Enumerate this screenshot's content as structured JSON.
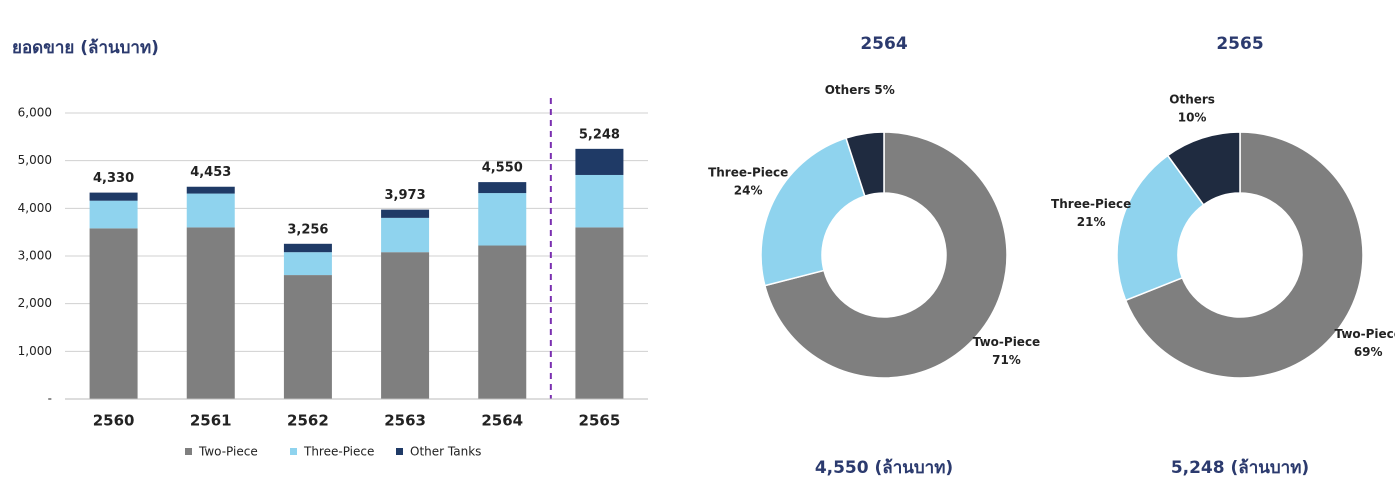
{
  "chart_data": [
    {
      "type": "stacked_bar",
      "title": "ยอดขาย (ล้านบาท)",
      "categories": [
        "2560",
        "2561",
        "2562",
        "2563",
        "2564",
        "2565"
      ],
      "series": [
        {
          "name": "Two-Piece",
          "color": "#7f7f7f",
          "values": [
            3580,
            3600,
            2600,
            3080,
            3220,
            3600
          ]
        },
        {
          "name": "Three-Piece",
          "color": "#8fd3ee",
          "values": [
            580,
            710,
            480,
            720,
            1100,
            1100
          ]
        },
        {
          "name": "Other Tanks",
          "color": "#1f3a66",
          "values": [
            170,
            143,
            176,
            173,
            230,
            548
          ]
        }
      ],
      "totals": [
        4330,
        4453,
        3256,
        3973,
        4550,
        5248
      ],
      "total_labels": [
        "4,330",
        "4,453",
        "3,256",
        "3,973",
        "4,550",
        "5,248"
      ],
      "ylim": [
        0,
        6000
      ],
      "yticks": [
        {
          "value": 0,
          "label": "-"
        },
        {
          "value": 1000,
          "label": "1,000"
        },
        {
          "value": 2000,
          "label": "2,000"
        },
        {
          "value": 3000,
          "label": "3,000"
        },
        {
          "value": 4000,
          "label": "4,000"
        },
        {
          "value": 5000,
          "label": "5,000"
        },
        {
          "value": 6000,
          "label": "6,000"
        }
      ],
      "grid": true,
      "legend": "bottom"
    },
    {
      "type": "donut",
      "title": "2564",
      "caption": "4,550 (ล้านบาท)",
      "categories": [
        "Two-Piece",
        "Three-Piece",
        "Others"
      ],
      "values": [
        71,
        24,
        5
      ],
      "value_labels": [
        "71%",
        "24%",
        "5%"
      ],
      "colors": [
        "#7f7f7f",
        "#8fd3ee",
        "#1f2b40"
      ]
    },
    {
      "type": "donut",
      "title": "2565",
      "caption": "5,248 (ล้านบาท)",
      "categories": [
        "Two-Piece",
        "Three-Piece",
        "Others"
      ],
      "values": [
        69,
        21,
        10
      ],
      "value_labels": [
        "69%",
        "21%",
        "10%"
      ],
      "colors": [
        "#7f7f7f",
        "#8fd3ee",
        "#1f2b40"
      ]
    }
  ]
}
